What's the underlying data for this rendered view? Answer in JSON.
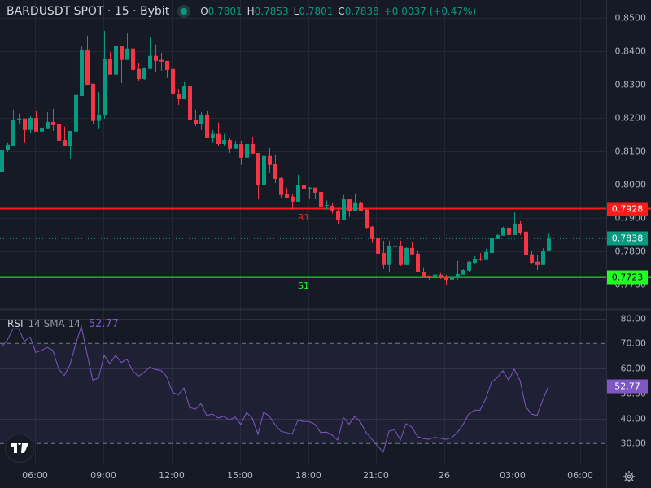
{
  "header": {
    "symbol": "BARDUSDT SPOT · 15 · Bybit",
    "status_icon": "market-open-dot-icon",
    "open_label": "O",
    "open": "0.7801",
    "high_label": "H",
    "high": "0.7853",
    "low_label": "L",
    "low": "0.7801",
    "close_label": "C",
    "close": "0.7838",
    "change": "+0.0037 (+0.47%)"
  },
  "colors": {
    "background": "#161a25",
    "up": "#089981",
    "down": "#f23645",
    "resistance": "#ff1a1a",
    "support": "#22ff22",
    "rsi": "#7e57c2"
  },
  "price_axis": {
    "ticks": [
      "0.8500",
      "0.8400",
      "0.8300",
      "0.8200",
      "0.8100",
      "0.8000",
      "0.7900",
      "0.7800",
      "0.7700"
    ],
    "resistance_badge": "0.7928",
    "last_price_badge": "0.7838",
    "support_badge": "0.7723"
  },
  "levels": {
    "resistance": {
      "label": "R1",
      "price": 0.7928
    },
    "support": {
      "label": "S1",
      "price": 0.7723
    },
    "last_price": 0.7838
  },
  "rsi": {
    "name": "RSI",
    "params": "14 SMA 14",
    "value": "52.77",
    "ticks": [
      "80.00",
      "70.00",
      "60.00",
      "50.00",
      "40.00",
      "30.00"
    ],
    "upper_band": 70,
    "lower_band": 30,
    "series": [
      68.6,
      71.3,
      75.9,
      75.9,
      70.8,
      72.6,
      66.4,
      67.2,
      68.4,
      67.2,
      59.9,
      57.2,
      61.5,
      69.7,
      76.9,
      65.9,
      55.3,
      56.1,
      65.3,
      61.9,
      65.3,
      62.4,
      63.7,
      59.1,
      56.9,
      58.5,
      60.5,
      59.6,
      59.2,
      56.7,
      50.5,
      49.4,
      52.2,
      44.4,
      43.7,
      45.9,
      41.2,
      41.8,
      40.2,
      40.9,
      39.4,
      40.6,
      37.6,
      42.4,
      40.1,
      33.7,
      42.6,
      40.9,
      37.5,
      34.9,
      34.4,
      33.7,
      39.3,
      38.8,
      38.8,
      37.7,
      34.4,
      34.6,
      33.4,
      31.4,
      40.4,
      37.7,
      40.9,
      38.5,
      34.4,
      31.7,
      29.0,
      26.6,
      35.0,
      35.5,
      31.4,
      37.9,
      36.6,
      32.8,
      32.0,
      31.7,
      32.5,
      32.1,
      31.7,
      32.3,
      34.4,
      37.5,
      41.8,
      43.3,
      43.3,
      48.0,
      54.5,
      56.3,
      59.1,
      55.3,
      59.7,
      55.3,
      44.7,
      41.8,
      41.2,
      47.5,
      52.77
    ]
  },
  "time_axis": {
    "labels": [
      "06:00",
      "09:00",
      "12:00",
      "15:00",
      "18:00",
      "21:00",
      "26",
      "03:00",
      "06:00"
    ]
  },
  "candles": [
    [
      0.8039,
      0.8154,
      0.8039,
      0.8105
    ],
    [
      0.8103,
      0.8125,
      0.8098,
      0.812
    ],
    [
      0.8117,
      0.8225,
      0.8117,
      0.8195
    ],
    [
      0.8193,
      0.8213,
      0.8183,
      0.8198
    ],
    [
      0.8198,
      0.8198,
      0.8125,
      0.8164
    ],
    [
      0.8164,
      0.8205,
      0.8156,
      0.82
    ],
    [
      0.82,
      0.8222,
      0.8159,
      0.8159
    ],
    [
      0.8159,
      0.8178,
      0.8154,
      0.8171
    ],
    [
      0.8169,
      0.8217,
      0.8169,
      0.8188
    ],
    [
      0.8188,
      0.8227,
      0.8161,
      0.8178
    ],
    [
      0.8181,
      0.8181,
      0.811,
      0.8132
    ],
    [
      0.8134,
      0.8174,
      0.8115,
      0.8115
    ],
    [
      0.8115,
      0.8161,
      0.8078,
      0.8161
    ],
    [
      0.8159,
      0.832,
      0.8159,
      0.8269
    ],
    [
      0.8266,
      0.8417,
      0.8266,
      0.8405
    ],
    [
      0.8405,
      0.8447,
      0.83,
      0.83
    ],
    [
      0.8303,
      0.8303,
      0.8183,
      0.8191
    ],
    [
      0.8191,
      0.8278,
      0.8169,
      0.821
    ],
    [
      0.8208,
      0.8461,
      0.8198,
      0.8378
    ],
    [
      0.8378,
      0.8398,
      0.833,
      0.833
    ],
    [
      0.833,
      0.8415,
      0.833,
      0.8415
    ],
    [
      0.8415,
      0.8415,
      0.8305,
      0.8374
    ],
    [
      0.8374,
      0.8454,
      0.8374,
      0.8408
    ],
    [
      0.8408,
      0.8408,
      0.8334,
      0.8344
    ],
    [
      0.8347,
      0.8366,
      0.831,
      0.8317
    ],
    [
      0.8317,
      0.8352,
      0.8315,
      0.8349
    ],
    [
      0.8347,
      0.8442,
      0.8347,
      0.8386
    ],
    [
      0.8386,
      0.842,
      0.8337,
      0.8371
    ],
    [
      0.8374,
      0.8395,
      0.8342,
      0.8369
    ],
    [
      0.8371,
      0.8371,
      0.832,
      0.8344
    ],
    [
      0.8347,
      0.8349,
      0.8266,
      0.8271
    ],
    [
      0.8273,
      0.8286,
      0.8239,
      0.8256
    ],
    [
      0.8256,
      0.8308,
      0.8256,
      0.8295
    ],
    [
      0.8295,
      0.8298,
      0.8178,
      0.8193
    ],
    [
      0.8195,
      0.8225,
      0.8176,
      0.8183
    ],
    [
      0.8183,
      0.8217,
      0.8164,
      0.821
    ],
    [
      0.821,
      0.822,
      0.8139,
      0.8139
    ],
    [
      0.8139,
      0.8164,
      0.8125,
      0.8152
    ],
    [
      0.8152,
      0.8186,
      0.8117,
      0.8122
    ],
    [
      0.8122,
      0.8152,
      0.8115,
      0.8134
    ],
    [
      0.8134,
      0.8139,
      0.8095,
      0.8108
    ],
    [
      0.8108,
      0.8132,
      0.8108,
      0.8122
    ],
    [
      0.8122,
      0.8132,
      0.8059,
      0.8081
    ],
    [
      0.8081,
      0.8125,
      0.8056,
      0.8122
    ],
    [
      0.8122,
      0.8142,
      0.8093,
      0.8093
    ],
    [
      0.8095,
      0.8095,
      0.7956,
      0.8
    ],
    [
      0.8,
      0.8095,
      0.7974,
      0.8086
    ],
    [
      0.8086,
      0.811,
      0.8034,
      0.8059
    ],
    [
      0.8061,
      0.8088,
      0.8005,
      0.8017
    ],
    [
      0.802,
      0.8022,
      0.7959,
      0.7969
    ],
    [
      0.7971,
      0.7991,
      0.7961,
      0.7961
    ],
    [
      0.7964,
      0.7971,
      0.7925,
      0.7949
    ],
    [
      0.7949,
      0.803,
      0.7949,
      0.7998
    ],
    [
      0.7998,
      0.8015,
      0.7986,
      0.7988
    ],
    [
      0.7988,
      0.7993,
      0.7956,
      0.7991
    ],
    [
      0.7991,
      0.7991,
      0.7956,
      0.7976
    ],
    [
      0.7978,
      0.7983,
      0.7925,
      0.7934
    ],
    [
      0.7937,
      0.7952,
      0.7925,
      0.7939
    ],
    [
      0.7937,
      0.7944,
      0.7913,
      0.792
    ],
    [
      0.7922,
      0.7927,
      0.7883,
      0.7893
    ],
    [
      0.7893,
      0.7969,
      0.7893,
      0.7956
    ],
    [
      0.7956,
      0.7956,
      0.7903,
      0.792
    ],
    [
      0.792,
      0.7974,
      0.792,
      0.7947
    ],
    [
      0.7947,
      0.7949,
      0.792,
      0.7922
    ],
    [
      0.7925,
      0.7927,
      0.7866,
      0.7871
    ],
    [
      0.7874,
      0.7876,
      0.7825,
      0.7837
    ],
    [
      0.7839,
      0.7854,
      0.7791,
      0.7793
    ],
    [
      0.7795,
      0.7832,
      0.7747,
      0.7759
    ],
    [
      0.7759,
      0.7832,
      0.7739,
      0.7815
    ],
    [
      0.7813,
      0.783,
      0.78,
      0.7817
    ],
    [
      0.7817,
      0.7832,
      0.7756,
      0.7759
    ],
    [
      0.7759,
      0.7812,
      0.7758,
      0.781
    ],
    [
      0.781,
      0.7827,
      0.779,
      0.7791
    ],
    [
      0.7793,
      0.7803,
      0.7737,
      0.7737
    ],
    [
      0.7739,
      0.7752,
      0.772,
      0.7725
    ],
    [
      0.7727,
      0.7727,
      0.7715,
      0.7722
    ],
    [
      0.7722,
      0.7737,
      0.7717,
      0.773
    ],
    [
      0.773,
      0.7735,
      0.7717,
      0.7722
    ],
    [
      0.7725,
      0.773,
      0.77,
      0.7715
    ],
    [
      0.7715,
      0.7747,
      0.7715,
      0.7722
    ],
    [
      0.772,
      0.7771,
      0.7715,
      0.7732
    ],
    [
      0.773,
      0.7746,
      0.773,
      0.7744
    ],
    [
      0.7742,
      0.7771,
      0.7737,
      0.7769
    ],
    [
      0.7766,
      0.7786,
      0.7761,
      0.7778
    ],
    [
      0.7778,
      0.7795,
      0.7771,
      0.7774
    ],
    [
      0.7774,
      0.7808,
      0.7774,
      0.7798
    ],
    [
      0.7795,
      0.7844,
      0.7793,
      0.7839
    ],
    [
      0.7837,
      0.7852,
      0.7837,
      0.7849
    ],
    [
      0.7847,
      0.7874,
      0.7847,
      0.7871
    ],
    [
      0.7871,
      0.7881,
      0.7847,
      0.7849
    ],
    [
      0.7849,
      0.7917,
      0.7849,
      0.7883
    ],
    [
      0.7883,
      0.7891,
      0.7849,
      0.7856
    ],
    [
      0.7859,
      0.7861,
      0.7783,
      0.7788
    ],
    [
      0.7791,
      0.78,
      0.7764,
      0.7766
    ],
    [
      0.7769,
      0.7788,
      0.7744,
      0.7759
    ],
    [
      0.7759,
      0.781,
      0.7759,
      0.78
    ],
    [
      0.7801,
      0.7853,
      0.7801,
      0.7838
    ]
  ]
}
